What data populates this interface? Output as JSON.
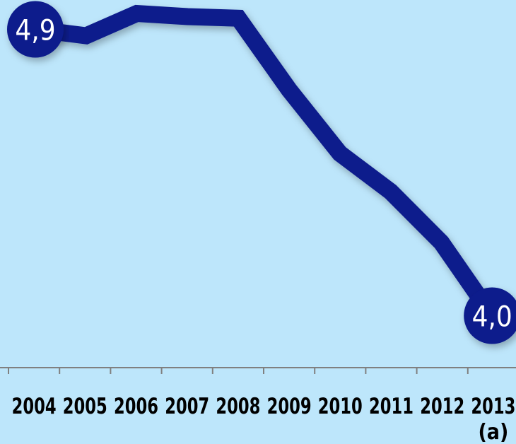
{
  "chart_data": {
    "type": "line",
    "title": "",
    "xlabel": "",
    "ylabel": "",
    "categories": [
      "2004",
      "2005",
      "2006",
      "2007",
      "2008",
      "2009",
      "2010",
      "2011",
      "2012",
      "2013"
    ],
    "category_sublabels": [
      "",
      "",
      "",
      "",
      "",
      "",
      "",
      "",
      "",
      "(a)"
    ],
    "series": [
      {
        "values": [
          4.9,
          4.88,
          4.95,
          4.94,
          4.935,
          4.71,
          4.51,
          4.39,
          4.23,
          4.0
        ]
      }
    ],
    "ylim": [
      3.93,
      4.97
    ],
    "grid": false,
    "legend": "none",
    "annotations": [
      {
        "index": 0,
        "label": "4,9"
      },
      {
        "index": 9,
        "label": "4,0"
      }
    ],
    "colors": {
      "background": "#bde6fb",
      "line": "#0a1a8c",
      "badge": "#0a1a8c",
      "badge_text": "#ffffff",
      "axis": "#808080",
      "tick_label": "#000000"
    }
  }
}
